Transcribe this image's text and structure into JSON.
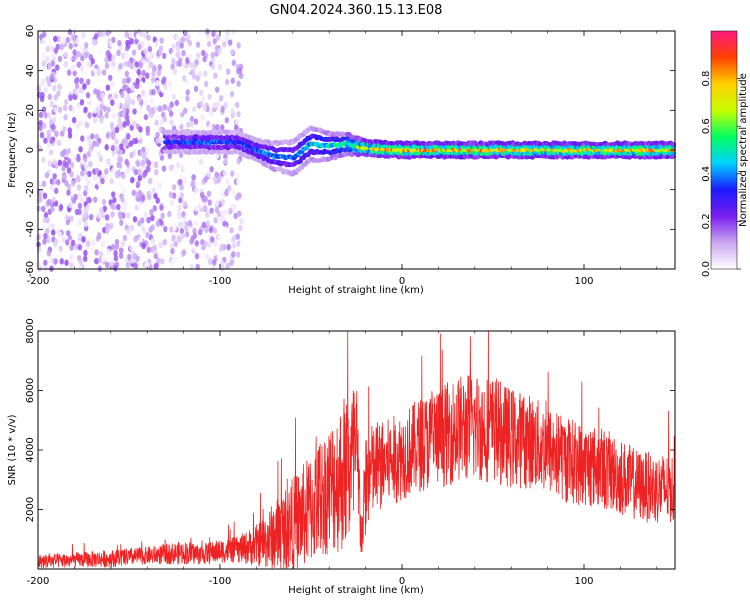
{
  "title": "GN04.2024.360.15.13.E08",
  "chart_data": [
    {
      "type": "heatmap",
      "xlabel": "Height of straight line (km)",
      "ylabel": "Frequency (Hz)",
      "xlim": [
        -200,
        150
      ],
      "ylim": [
        -60,
        60
      ],
      "x_ticks": [
        -200,
        -100,
        0,
        100
      ],
      "y_ticks": [
        -60,
        -40,
        -20,
        0,
        20,
        40,
        60
      ],
      "colorbar": {
        "label": "Normalized spectral amplitude",
        "range": [
          0,
          1
        ],
        "ticks": [
          0.0,
          0.2,
          0.4,
          0.6,
          0.8
        ],
        "tick_labels": [
          "0.0",
          "0.2",
          "0.4",
          "0.6",
          "0.8"
        ],
        "colormap": [
          "#ffffff",
          "#c9a6f2",
          "#7a1ef0",
          "#1a1aff",
          "#00d2ff",
          "#00ff60",
          "#c8ff00",
          "#ffd000",
          "#ff4000",
          "#ff1a80"
        ]
      },
      "noise_regions": [
        {
          "x_range": [
            -200,
            -130
          ],
          "freq_range": [
            -60,
            60
          ],
          "density": 1.0,
          "amplitude": 0.12
        },
        {
          "x_range": [
            -128,
            -88
          ],
          "freq_range": [
            -60,
            60
          ],
          "density": 0.8,
          "amplitude": 0.1
        }
      ],
      "signal_band": [
        {
          "x": -130,
          "freq": 4,
          "width": 3,
          "amplitude": 0.35
        },
        {
          "x": -110,
          "freq": 4,
          "width": 3,
          "amplitude": 0.38
        },
        {
          "x": -90,
          "freq": 4,
          "width": 3,
          "amplitude": 0.38
        },
        {
          "x": -80,
          "freq": 0,
          "width": 3,
          "amplitude": 0.4
        },
        {
          "x": -70,
          "freq": -3,
          "width": 4,
          "amplitude": 0.42
        },
        {
          "x": -60,
          "freq": -4,
          "width": 5,
          "amplitude": 0.4
        },
        {
          "x": -50,
          "freq": 3,
          "width": 5,
          "amplitude": 0.45
        },
        {
          "x": -40,
          "freq": 2,
          "width": 4,
          "amplitude": 0.5
        },
        {
          "x": -30,
          "freq": 3,
          "width": 3,
          "amplitude": 0.55
        },
        {
          "x": -20,
          "freq": 1,
          "width": 2,
          "amplitude": 0.75
        },
        {
          "x": 0,
          "freq": 0,
          "width": 2,
          "amplitude": 0.85
        },
        {
          "x": 25,
          "freq": 0,
          "width": 2,
          "amplitude": 0.8
        },
        {
          "x": 50,
          "freq": 0,
          "width": 2,
          "amplitude": 0.82
        },
        {
          "x": 75,
          "freq": 0,
          "width": 2,
          "amplitude": 0.78
        },
        {
          "x": 100,
          "freq": 0,
          "width": 2,
          "amplitude": 0.8
        },
        {
          "x": 125,
          "freq": 0,
          "width": 2,
          "amplitude": 0.8
        },
        {
          "x": 150,
          "freq": 0,
          "width": 2,
          "amplitude": 0.78
        }
      ]
    },
    {
      "type": "line",
      "xlabel": "Height of straight line (km)",
      "ylabel": "SNR (10 * v/v)",
      "xlim": [
        -200,
        150
      ],
      "ylim": [
        0,
        8000
      ],
      "x_ticks": [
        -200,
        -100,
        0,
        100
      ],
      "y_ticks": [
        2000,
        4000,
        6000,
        8000
      ],
      "series": [
        {
          "color": "#ee2222",
          "x": [
            -200,
            -180,
            -160,
            -140,
            -120,
            -110,
            -100,
            -90,
            -80,
            -70,
            -60,
            -50,
            -45,
            -40,
            -35,
            -30,
            -25,
            -22,
            -20,
            -18,
            -15,
            -10,
            0,
            10,
            20,
            30,
            40,
            50,
            60,
            70,
            80,
            90,
            100,
            110,
            120,
            130,
            140,
            150
          ],
          "mean": [
            250,
            300,
            350,
            450,
            550,
            500,
            600,
            650,
            800,
            1100,
            1500,
            2000,
            2400,
            2700,
            3000,
            3400,
            3600,
            1000,
            2900,
            3200,
            3300,
            3500,
            3800,
            4200,
            4400,
            4700,
            4800,
            4700,
            4400,
            4300,
            4000,
            3700,
            3500,
            3400,
            3100,
            2800,
            2700,
            2700
          ],
          "spread": [
            250,
            250,
            300,
            300,
            400,
            350,
            400,
            450,
            700,
            1200,
            1600,
            1900,
            2000,
            2200,
            2500,
            2800,
            2900,
            700,
            1900,
            1700,
            1600,
            1500,
            1500,
            1600,
            1700,
            1800,
            1900,
            1800,
            1700,
            1600,
            1500,
            1500,
            1400,
            1400,
            1300,
            1200,
            1200,
            1200
          ]
        }
      ]
    }
  ]
}
